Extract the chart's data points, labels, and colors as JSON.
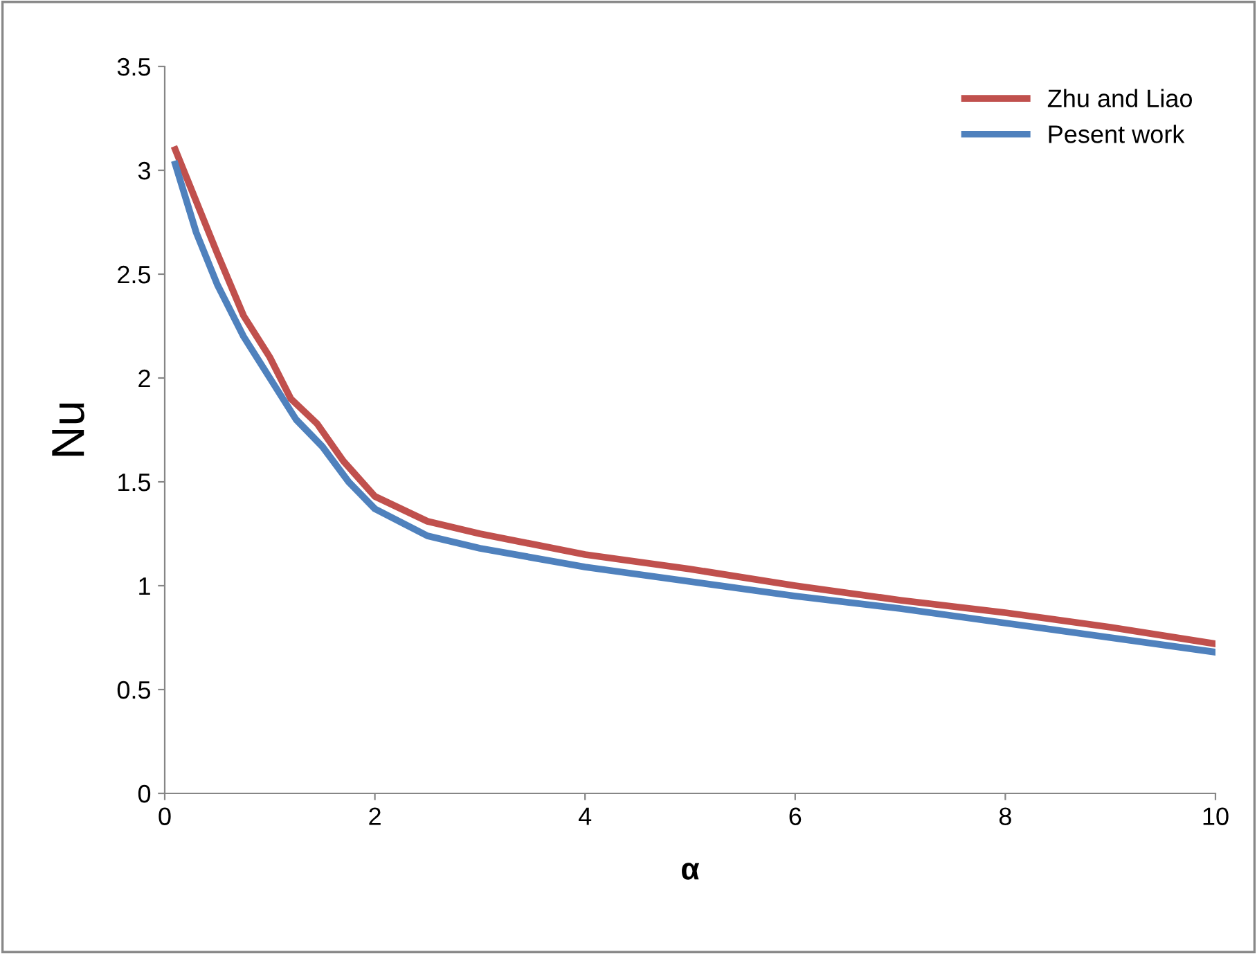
{
  "chart_data": {
    "type": "line",
    "xlabel": "α",
    "ylabel": "Nu",
    "series": [
      {
        "name": "Zhu and Liao",
        "color": "#c0504d",
        "x": [
          0.1,
          0.3,
          0.5,
          0.75,
          1.0,
          1.2,
          1.45,
          1.7,
          2.0,
          2.5,
          3,
          4,
          5,
          6,
          7,
          8,
          9,
          10
        ],
        "values": [
          3.1,
          2.85,
          2.6,
          2.3,
          2.1,
          1.9,
          1.78,
          1.6,
          1.43,
          1.31,
          1.25,
          1.15,
          1.08,
          1.0,
          0.93,
          0.87,
          0.8,
          0.72
        ]
      },
      {
        "name": "Pesent work",
        "color": "#4f81bd",
        "x": [
          0.1,
          0.3,
          0.5,
          0.75,
          1.0,
          1.25,
          1.5,
          1.75,
          2.0,
          2.5,
          3,
          4,
          5,
          6,
          7,
          8,
          9,
          10
        ],
        "values": [
          3.03,
          2.7,
          2.45,
          2.2,
          2.0,
          1.8,
          1.67,
          1.5,
          1.37,
          1.24,
          1.18,
          1.09,
          1.02,
          0.95,
          0.89,
          0.82,
          0.75,
          0.68
        ]
      }
    ],
    "xlim": [
      0,
      10
    ],
    "xticks": [
      0,
      2,
      4,
      6,
      8,
      10
    ],
    "ylim": [
      0,
      3.5
    ],
    "yticks": [
      0,
      0.5,
      1,
      1.5,
      2,
      2.5,
      3,
      3.5
    ],
    "grid": false,
    "legend": "top right",
    "marker": "none",
    "line_style": "solid"
  }
}
